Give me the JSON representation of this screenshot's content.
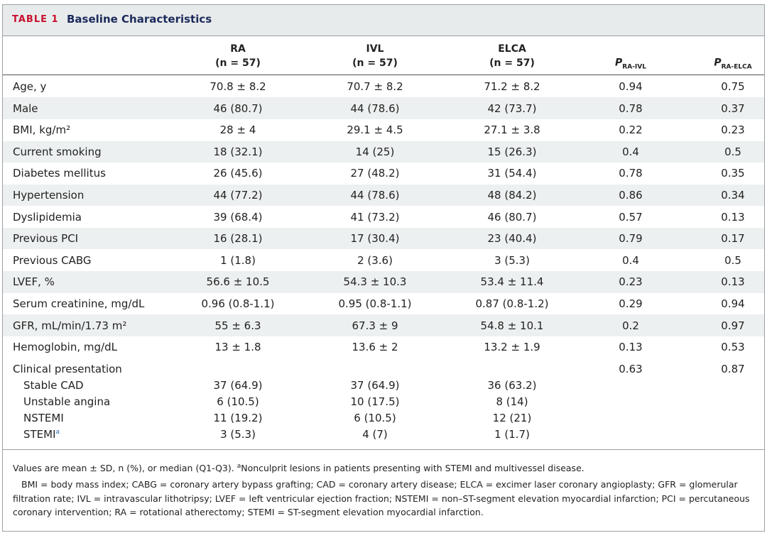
{
  "header": {
    "label": "TABLE 1",
    "title": "Baseline Characteristics"
  },
  "table": {
    "columns": [
      {
        "name": "RA",
        "n": "(n = 57)"
      },
      {
        "name": "IVL",
        "n": "(n = 57)"
      },
      {
        "name": "ELCA",
        "n": "(n = 57)"
      },
      {
        "p": "P",
        "sub": "RA-IVL"
      },
      {
        "p": "P",
        "sub": "RA-ELCA"
      }
    ],
    "rows": [
      {
        "label": "Age, y",
        "cells": [
          "70.8 ± 8.2",
          "70.7 ± 8.2",
          "71.2 ± 8.2",
          "0.94",
          "0.75"
        ]
      },
      {
        "label": "Male",
        "cells": [
          "46 (80.7)",
          "44 (78.6)",
          "42 (73.7)",
          "0.78",
          "0.37"
        ]
      },
      {
        "label": "BMI, kg/m²",
        "cells": [
          "28 ± 4",
          "29.1 ± 4.5",
          "27.1 ± 3.8",
          "0.22",
          "0.23"
        ]
      },
      {
        "label": "Current smoking",
        "cells": [
          "18 (32.1)",
          "14 (25)",
          "15 (26.3)",
          "0.4",
          "0.5"
        ]
      },
      {
        "label": "Diabetes mellitus",
        "cells": [
          "26 (45.6)",
          "27 (48.2)",
          "31 (54.4)",
          "0.78",
          "0.35"
        ]
      },
      {
        "label": "Hypertension",
        "cells": [
          "44 (77.2)",
          "44 (78.6)",
          "48 (84.2)",
          "0.86",
          "0.34"
        ]
      },
      {
        "label": "Dyslipidemia",
        "cells": [
          "39 (68.4)",
          "41 (73.2)",
          "46 (80.7)",
          "0.57",
          "0.13"
        ]
      },
      {
        "label": "Previous PCI",
        "cells": [
          "16 (28.1)",
          "17 (30.4)",
          "23 (40.4)",
          "0.79",
          "0.17"
        ]
      },
      {
        "label": "Previous CABG",
        "cells": [
          "1 (1.8)",
          "2 (3.6)",
          "3 (5.3)",
          "0.4",
          "0.5"
        ]
      },
      {
        "label": "LVEF, %",
        "cells": [
          "56.6 ± 10.5",
          "54.3 ± 10.3",
          "53.4 ± 11.4",
          "0.23",
          "0.13"
        ]
      },
      {
        "label": "Serum creatinine, mg/dL",
        "cells": [
          "0.96 (0.8-1.1)",
          "0.95 (0.8-1.1)",
          "0.87 (0.8-1.2)",
          "0.29",
          "0.94"
        ]
      },
      {
        "label": "GFR, mL/min/1.73 m²",
        "cells": [
          "55 ± 6.3",
          "67.3 ± 9",
          "54.8 ± 10.1",
          "0.2",
          "0.97"
        ]
      },
      {
        "label": "Hemoglobin, mg/dL",
        "cells": [
          "13 ± 1.8",
          "13.6 ± 2",
          "13.2 ± 1.9",
          "0.13",
          "0.53"
        ]
      }
    ],
    "group": {
      "label": "Clinical presentation",
      "cells": [
        "0.63",
        "0.87"
      ],
      "subrows": [
        {
          "label": "Stable CAD",
          "cells": [
            "37 (64.9)",
            "37 (64.9)",
            "36 (63.2)"
          ]
        },
        {
          "label": "Unstable angina",
          "cells": [
            "6 (10.5)",
            "10 (17.5)",
            "8 (14)"
          ]
        },
        {
          "label": "NSTEMI",
          "cells": [
            "11 (19.2)",
            "6 (10.5)",
            "12 (21)"
          ]
        },
        {
          "label": "STEMI",
          "note": "a",
          "cells": [
            "3 (5.3)",
            "4 (7)",
            "1 (1.7)"
          ]
        }
      ]
    }
  },
  "footer": {
    "values": "Values are mean ± SD, n (%), or median (Q1-Q3). ",
    "note_mark": "a",
    "note": "Nonculprit lesions in patients presenting with STEMI and multivessel disease.",
    "abbreviations": "BMI = body mass index; CABG = coronary artery bypass grafting; CAD = coronary artery disease; ELCA = excimer laser coronary angioplasty; GFR = glomerular filtration rate; IVL = intravascular lithotripsy; LVEF = left ventricular ejection fraction; NSTEMI = non–ST-segment elevation myocardial infarction; PCI = percutaneous coronary intervention; RA = rotational atherectomy; STEMI = ST-segment elevation myocardial infarction."
  }
}
